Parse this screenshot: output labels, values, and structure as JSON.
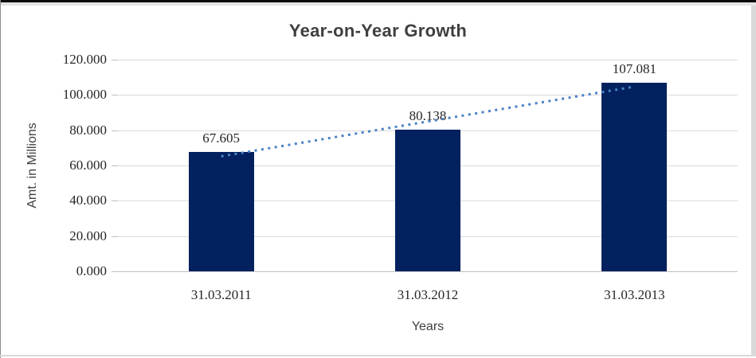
{
  "window": {
    "background": "#FFFFFF",
    "top_border_color": "#0A0A0A",
    "top_strip_color": "#E4E4E4",
    "left_border_color": "#8C8C8C",
    "right_strip_color": "#D9D9D9",
    "bottom_line_color": "#D9D9D9"
  },
  "chart_data": {
    "type": "bar",
    "title": "Year-on-Year Growth",
    "categories": [
      "31.03.2011",
      "31.03.2012",
      "31.03.2013"
    ],
    "values": [
      67.605,
      80.138,
      107.081
    ],
    "data_labels": [
      "67.605",
      "80.138",
      "107.081"
    ],
    "xlabel": "Years",
    "ylabel": "Amt. in Millions",
    "ylim": [
      0,
      120
    ],
    "ytick_step": 20,
    "ytick_labels": [
      "0.000",
      "20.000",
      "40.000",
      "60.000",
      "80.000",
      "100.000",
      "120.000"
    ],
    "grid": true,
    "legend": "none",
    "trendline": {
      "type": "linear",
      "style": "dotted"
    },
    "colors": {
      "bar": "#02215E",
      "trendline": "#4A82C6",
      "gridline": "#DBDBDB",
      "axis_line": "#BFBFBF",
      "title_text": "#3F3F3F",
      "axis_title_text": "#3F3F3F",
      "tick_label_text": "#262626"
    }
  }
}
